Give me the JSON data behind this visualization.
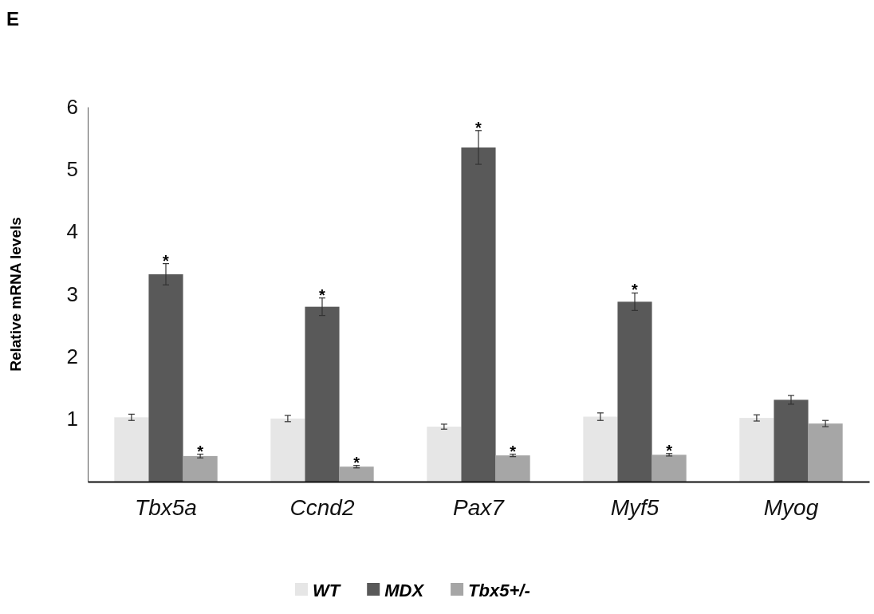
{
  "chart_data": {
    "type": "bar",
    "ylabel": "Relative mRNA levels",
    "categories": [
      "Tbx5a",
      "Ccnd2",
      "Pax7",
      "Myf5",
      "Myog"
    ],
    "series": [
      {
        "name": "WT",
        "color": "#e6e6e6",
        "values": [
          1.03,
          1.01,
          0.88,
          1.04,
          1.02
        ],
        "errors": [
          0.05,
          0.05,
          0.04,
          0.06,
          0.05
        ]
      },
      {
        "name": "MDX",
        "color": "#595959",
        "values": [
          3.32,
          2.8,
          5.35,
          2.88,
          1.31
        ],
        "errors": [
          0.17,
          0.14,
          0.27,
          0.14,
          0.07
        ],
        "value_labels": [
          "*",
          "*",
          "*",
          "*",
          null
        ]
      },
      {
        "name": "Tbx5+/-",
        "color": "#a6a6a6",
        "values": [
          0.41,
          0.24,
          0.42,
          0.43,
          0.93
        ],
        "errors": [
          0.03,
          0.02,
          0.02,
          0.02,
          0.05
        ],
        "value_labels": [
          "*",
          "*",
          "*",
          "*",
          null
        ]
      }
    ],
    "ylim": [
      0,
      6
    ],
    "yticks": [
      1,
      2,
      3,
      4,
      5,
      6
    ],
    "grid": false,
    "legend": "bottom",
    "annotations": [
      "E"
    ]
  }
}
